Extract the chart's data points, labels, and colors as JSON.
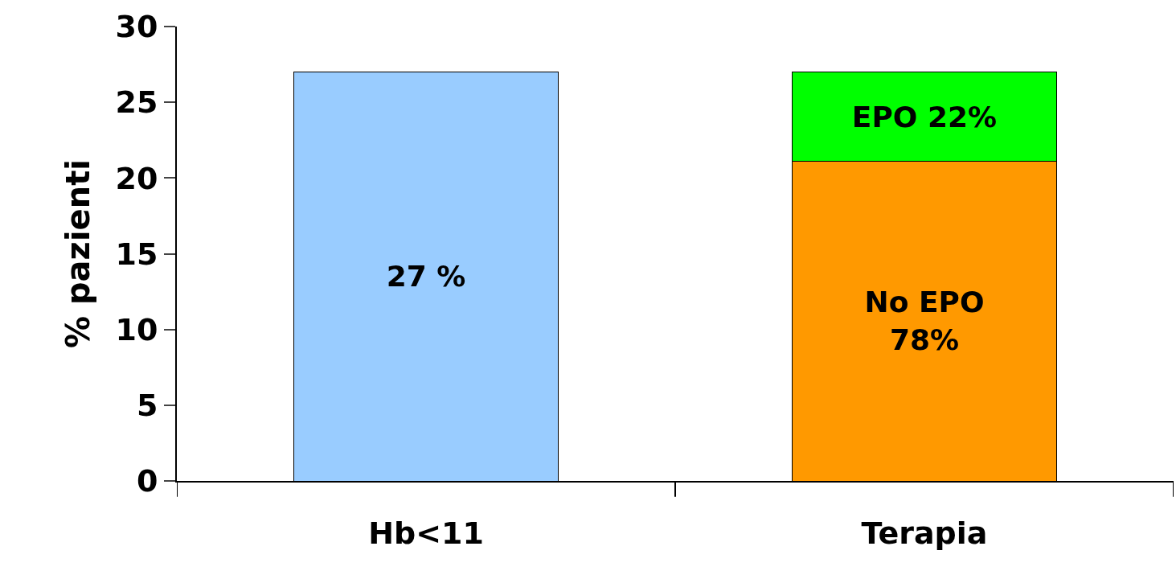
{
  "chart_data": {
    "type": "bar",
    "ylabel": "% pazienti",
    "categories": [
      "Hb<11",
      "Terapia"
    ],
    "stacked": true,
    "series": [
      {
        "color": "#99ccff",
        "values": [
          27,
          null
        ],
        "value_labels": [
          "27 %",
          null
        ]
      },
      {
        "color": "#ff9900",
        "values": [
          null,
          21.1
        ],
        "value_labels": [
          null,
          "No EPO\n78%"
        ]
      },
      {
        "color": "#00ff00",
        "values": [
          null,
          5.9
        ],
        "value_labels": [
          null,
          "EPO 22%"
        ]
      }
    ],
    "ylim": [
      0,
      30
    ],
    "yticks": [
      0,
      5,
      10,
      15,
      20,
      25,
      30
    ],
    "grid": false
  }
}
